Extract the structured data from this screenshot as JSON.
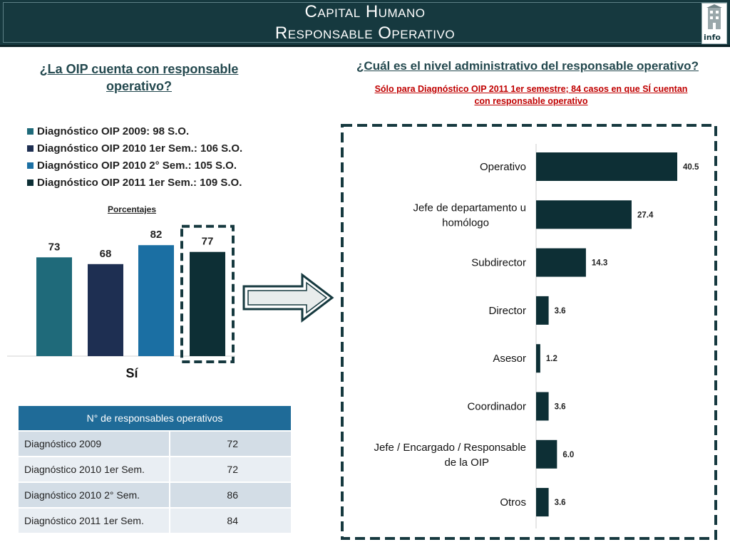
{
  "header": {
    "title_line1": "Capital Humano",
    "title_line2": "Responsable Operativo",
    "logo_text": "info"
  },
  "left": {
    "question": "¿La OIP cuenta con responsable operativo?",
    "unit_label": "Porcentajes",
    "category_label": "Sí"
  },
  "right": {
    "question": "¿Cuál es el nivel administrativo del responsable operativo?",
    "note": "Sólo para Diagnóstico OIP 2011 1er semestre; 84 casos en que SÍ cuentan con responsable operativo"
  },
  "table": {
    "header": "N° de responsables operativos",
    "rows": [
      {
        "label": "Diagnóstico 2009",
        "value": "72"
      },
      {
        "label": "Diagnóstico 2010 1er Sem.",
        "value": "72"
      },
      {
        "label": "Diagnóstico 2010 2° Sem.",
        "value": "86"
      },
      {
        "label": "Diagnóstico 2011 1er Sem.",
        "value": "84"
      }
    ]
  },
  "icons": {
    "arrow": "right-arrow-icon",
    "logo": "info-logo"
  },
  "colors": {
    "header_bg": "#16393f",
    "title_text": "#ffffff",
    "question_text": "#23484e",
    "note_text": "#c00000",
    "table_header_bg": "#1f6b98",
    "highlight_border": "#16393f"
  },
  "chart_data": [
    {
      "type": "bar",
      "categories": [
        "Sí"
      ],
      "series": [
        {
          "name": "Diagnóstico OIP 2009: 98 S.O.",
          "values": [
            73
          ],
          "color": "#1f6a7a"
        },
        {
          "name": "Diagnóstico OIP 2010 1er Sem.: 106 S.O.",
          "values": [
            68
          ],
          "color": "#1e2f52"
        },
        {
          "name": "Diagnóstico OIP 2010 2° Sem.: 105 S.O.",
          "values": [
            82
          ],
          "color": "#1b6fa3"
        },
        {
          "name": "Diagnóstico OIP 2011 1er Sem.: 109 S.O.",
          "values": [
            77
          ],
          "color": "#0d2f35"
        }
      ],
      "ylim": [
        0,
        100
      ],
      "highlighted_series": 3,
      "legend": "top-left"
    },
    {
      "type": "bar",
      "orientation": "horizontal",
      "categories": [
        "Operativo",
        "Jefe de departamento u homólogo",
        "Subdirector",
        "Director",
        "Asesor",
        "Coordinador",
        "Jefe / Encargado / Responsable de la OIP",
        "Otros"
      ],
      "values": [
        40.5,
        27.4,
        14.3,
        3.6,
        1.2,
        3.6,
        6.0,
        3.6
      ],
      "value_labels": [
        "40.5",
        "27.4",
        "14.3",
        "3.6",
        "1.2",
        "3.6",
        "6.0",
        "3.6"
      ],
      "color": "#0d2f35",
      "xlim": [
        0,
        45
      ]
    }
  ]
}
